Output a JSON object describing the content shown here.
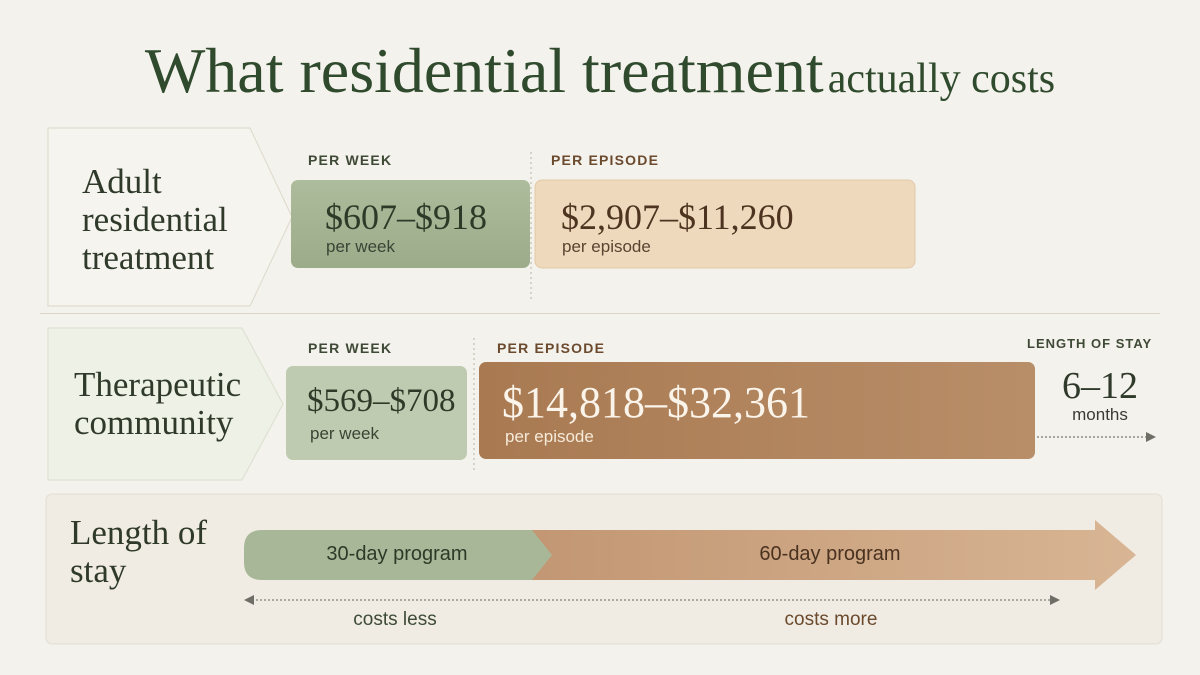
{
  "title": {
    "main": "What residential treatment",
    "sub": "actually costs"
  },
  "rows": [
    {
      "label": "Adult residential treatment",
      "per_week_caption": "PER WEEK",
      "per_week_value": "$607–$918",
      "per_week_sub": "per week",
      "per_episode_caption": "PER EPISODE",
      "per_episode_value": "$2,907–$11,260",
      "per_episode_sub": "per episode"
    },
    {
      "label": "Therapeutic community",
      "per_week_caption": "PER WEEK",
      "per_week_value": "$569–$708",
      "per_week_sub": "per week",
      "per_episode_caption": "PER EPISODE",
      "per_episode_value": "$14,818–$32,361",
      "per_episode_sub": "per episode",
      "length_caption": "LENGTH OF STAY",
      "length_value": "6–12",
      "length_unit": "months"
    }
  ],
  "length_of_stay": {
    "label": "Length of stay",
    "short_program": "30-day program",
    "long_program": "60-day program",
    "less": "costs less",
    "more": "costs more"
  },
  "colors": {
    "green": "#a6b595",
    "green_light": "#c4cfb4",
    "tan": "#efd9bc",
    "brown": "#b0825a",
    "heading": "#2f4a2c"
  }
}
